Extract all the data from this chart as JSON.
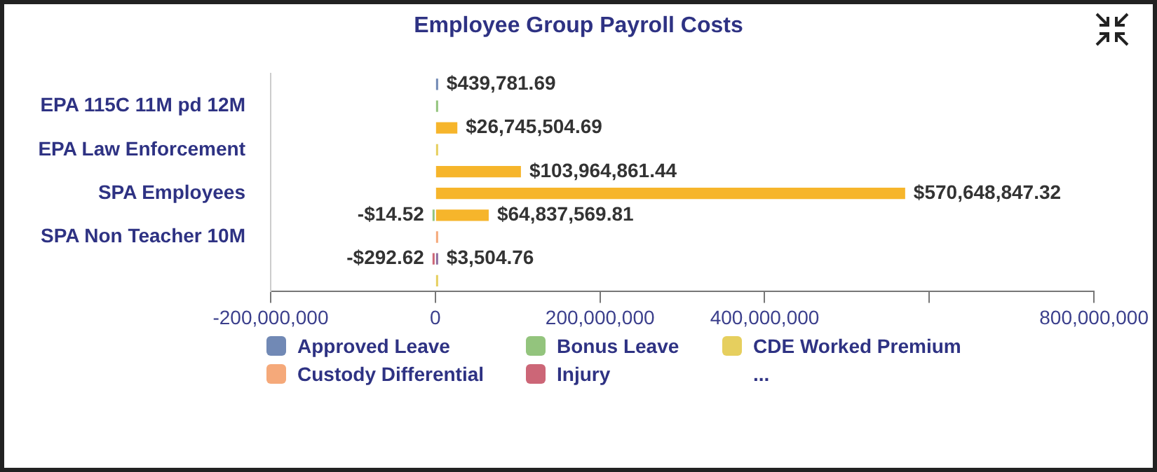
{
  "chart_data": {
    "type": "bar",
    "orientation": "horizontal",
    "stacked": true,
    "title": "Employee Group Payroll Costs",
    "categories": [
      null,
      "EPA 115C 11M pd 12M",
      null,
      "EPA Law Enforcement",
      null,
      "SPA Employees",
      null,
      "SPA Non Teacher 10M",
      null,
      null
    ],
    "series": [
      {
        "name": "Approved Leave",
        "color": "#7189b5",
        "values": [
          439781.69,
          null,
          null,
          null,
          null,
          null,
          null,
          null,
          null,
          null
        ],
        "value_labels": [
          "$439,781.69",
          null,
          null,
          null,
          null,
          null,
          null,
          null,
          null,
          null
        ]
      },
      {
        "name": "Bonus Leave",
        "color": "#93c47d",
        "values": [
          null,
          1000000,
          null,
          null,
          null,
          null,
          -14.52,
          null,
          null,
          null
        ],
        "value_labels": [
          null,
          null,
          null,
          null,
          null,
          null,
          "-$14.52",
          null,
          null,
          null
        ]
      },
      {
        "name": "CDE Worked Premium",
        "color": "#e6cf5e",
        "values": [
          null,
          null,
          null,
          1000000,
          null,
          null,
          null,
          null,
          null,
          1000000
        ]
      },
      {
        "name": "Custody Differential",
        "color": "#f5a97a",
        "values": [
          null,
          null,
          null,
          null,
          null,
          null,
          null,
          1000000,
          null,
          null
        ]
      },
      {
        "name": "Injury",
        "color": "#cc6677",
        "values": [
          null,
          null,
          null,
          null,
          null,
          null,
          null,
          null,
          -292.62,
          null
        ],
        "value_labels": [
          null,
          null,
          null,
          null,
          null,
          null,
          null,
          null,
          "-$292.62",
          null
        ]
      },
      {
        "color": "#f6b52b",
        "values": [
          null,
          null,
          26745504.69,
          null,
          103964861.44,
          570648847.32,
          64837569.81,
          null,
          null,
          null
        ],
        "value_labels": [
          null,
          null,
          "$26,745,504.69",
          null,
          "$103,964,861.44",
          "$570,648,847.32",
          "$64,837,569.81",
          null,
          null,
          null
        ]
      },
      {
        "color": "#8e6c9e",
        "values": [
          null,
          null,
          null,
          null,
          null,
          null,
          null,
          null,
          3504.76,
          null
        ],
        "value_labels": [
          null,
          null,
          null,
          null,
          null,
          null,
          null,
          null,
          "$3,504.76",
          null
        ]
      }
    ],
    "xlim": [
      -200000000,
      800000000
    ],
    "xticks": [
      {
        "value": -200000000,
        "label": "-200,000,000"
      },
      0,
      {
        "value": 200000000,
        "label": "200,000,000"
      },
      {
        "value": 400000000,
        "label": "400,000,000"
      },
      {
        "value": 600000000,
        "label": null
      },
      {
        "value": 800000000,
        "label": "800,000,000"
      }
    ],
    "grid": false,
    "legend": "bottom",
    "annotations": [
      "..."
    ]
  }
}
